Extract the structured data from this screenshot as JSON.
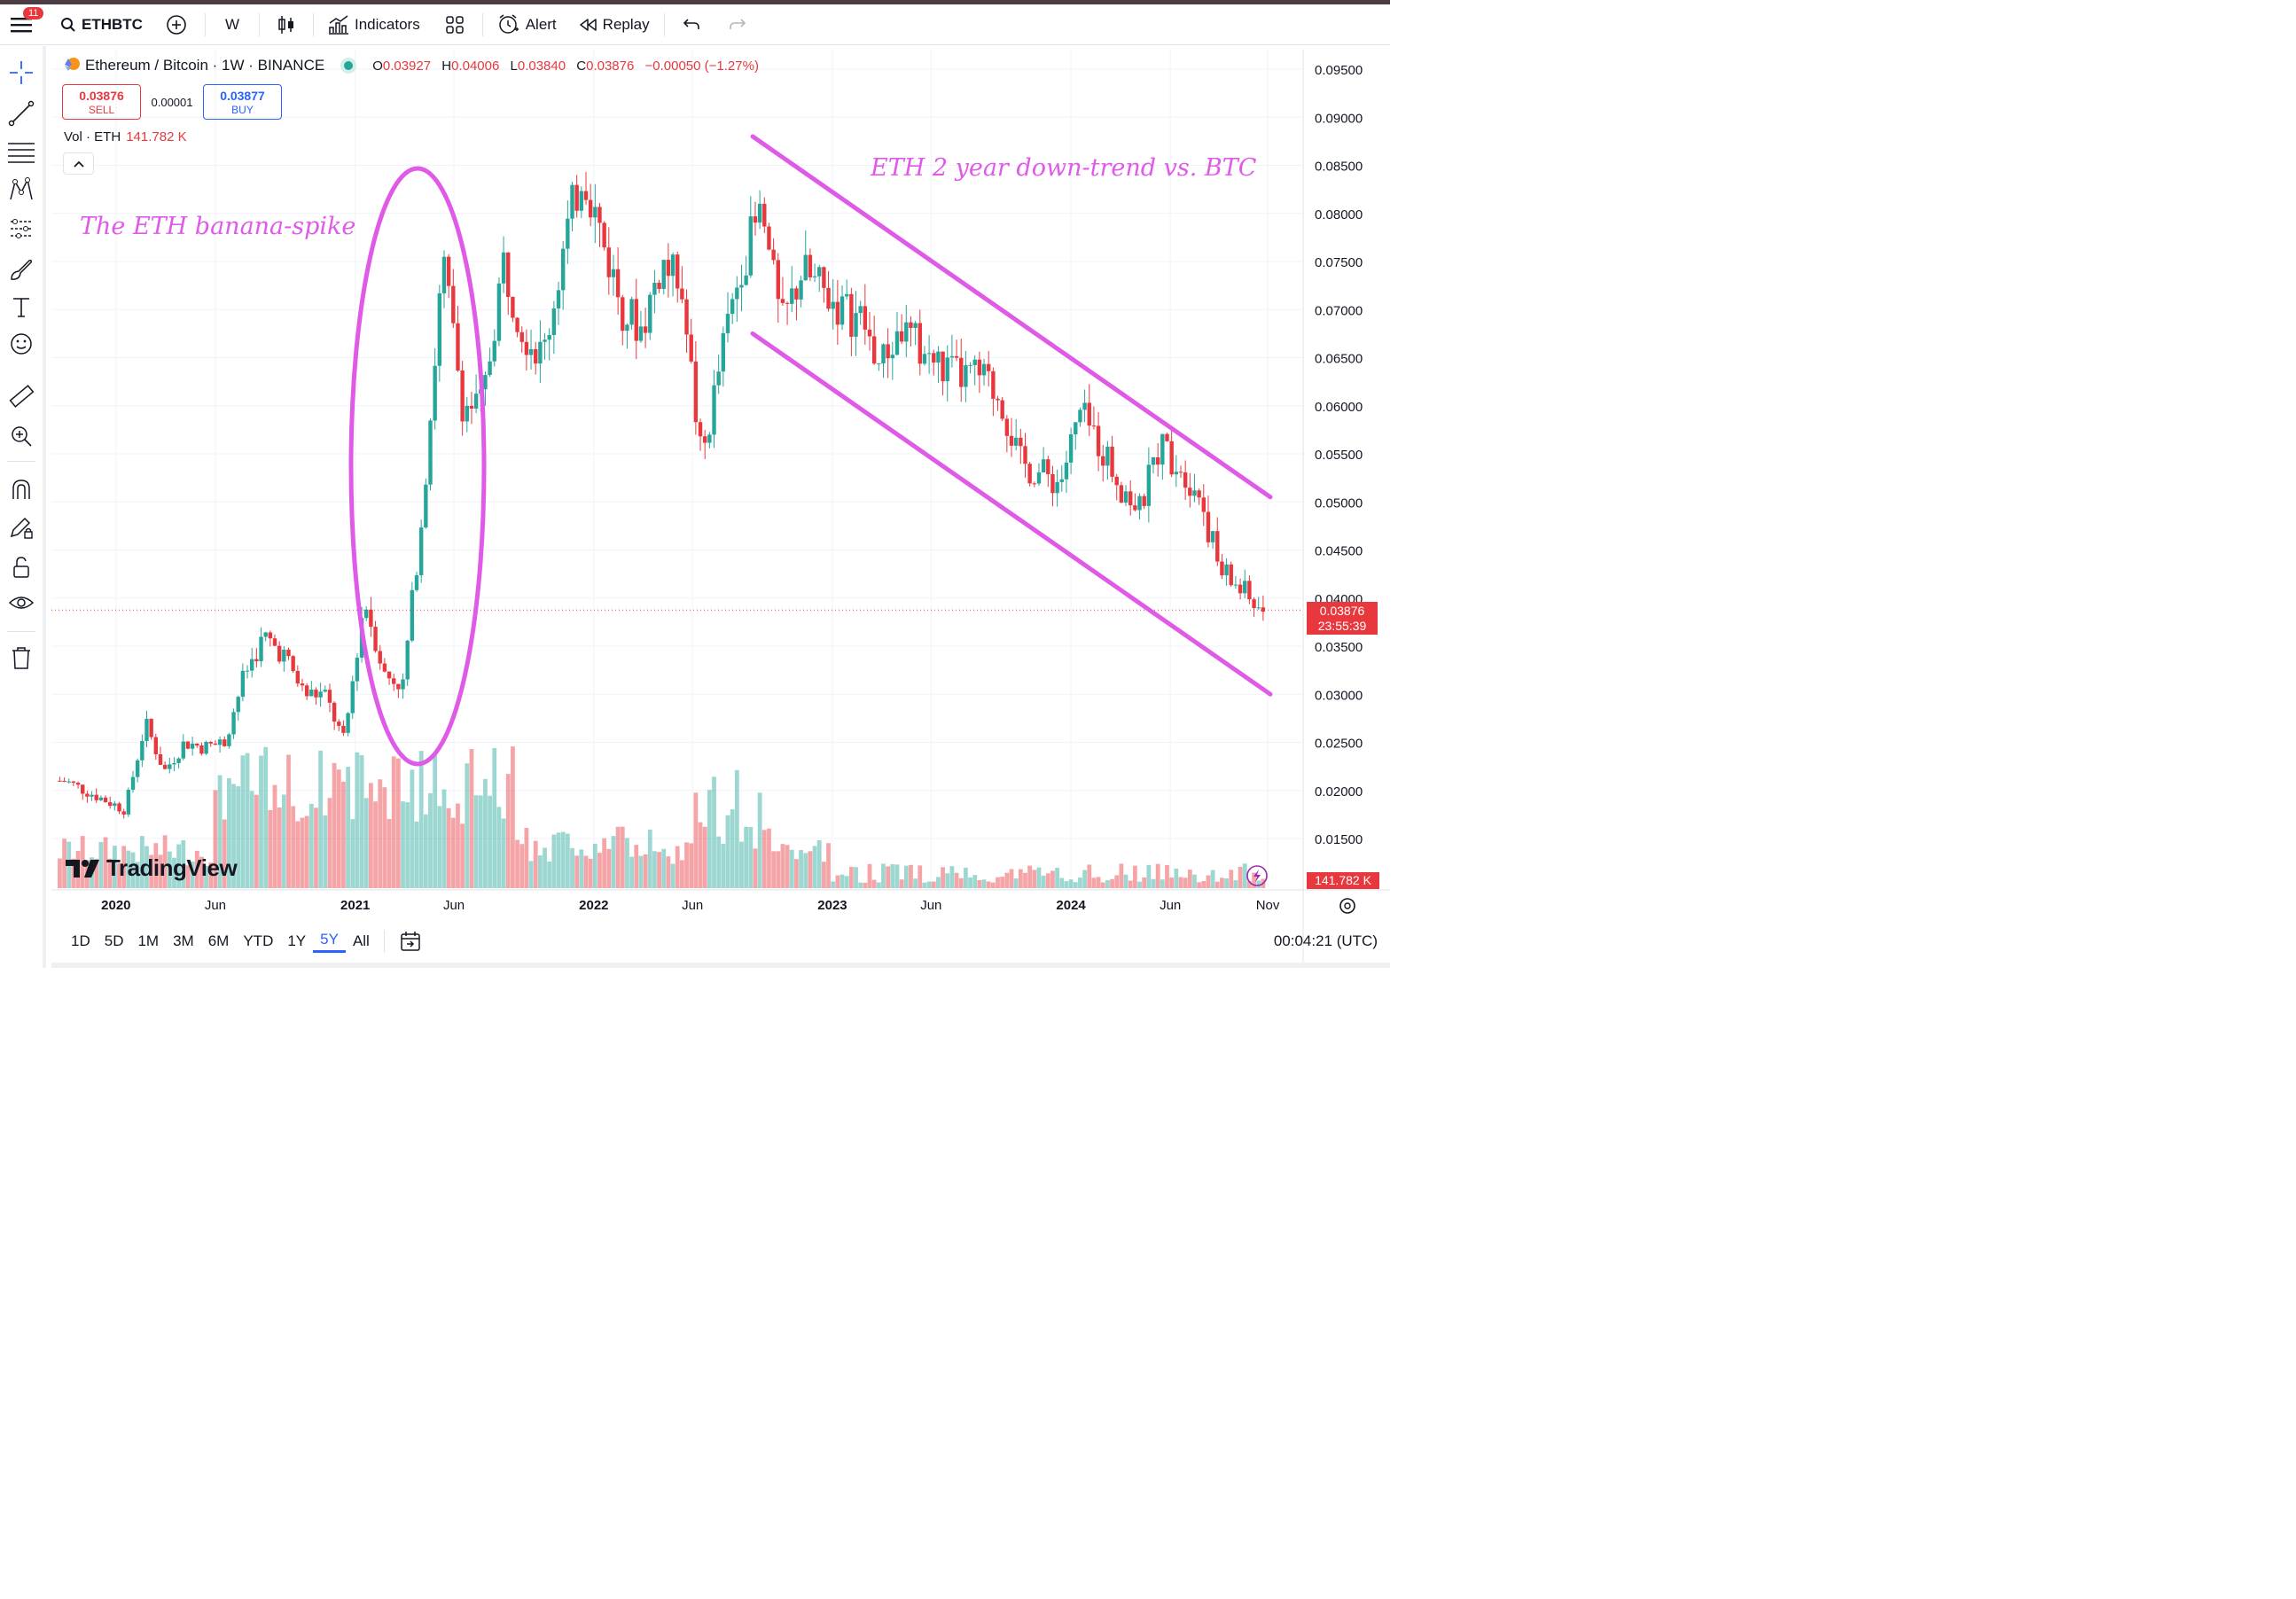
{
  "toolbar": {
    "notifications": "11",
    "symbol": "ETHBTC",
    "interval": "W",
    "indicators_label": "Indicators",
    "alert_label": "Alert",
    "replay_label": "Replay"
  },
  "legend": {
    "pair": "Ethereum / Bitcoin · 1W · BINANCE",
    "o_label": "O",
    "o": "0.03927",
    "h_label": "H",
    "h": "0.04006",
    "l_label": "L",
    "l": "0.03840",
    "c_label": "C",
    "c": "0.03876",
    "change": "−0.00050 (−1.27%)"
  },
  "trade": {
    "sell_price": "0.03876",
    "sell_label": "SELL",
    "spread": "0.00001",
    "buy_price": "0.03877",
    "buy_label": "BUY"
  },
  "volume": {
    "label": "Vol · ETH",
    "value": "141.782 K"
  },
  "annotations": {
    "left": "The ETH banana-spike",
    "right": "ETH 2 year down-trend vs. BTC"
  },
  "logo_text": "TradingView",
  "price_tag": {
    "price": "0.03876",
    "countdown": "23:55:39"
  },
  "volume_tag": "141.782 K",
  "ranges": [
    "1D",
    "5D",
    "1M",
    "3M",
    "6M",
    "YTD",
    "1Y",
    "5Y",
    "All"
  ],
  "active_range": "5Y",
  "clock": "00:04:21 (UTC)",
  "colors": {
    "up": "#26a69a",
    "down": "#e8383d",
    "annotation": "#e05ae8",
    "accent": "#2962ff"
  },
  "chart_data": {
    "type": "candlestick",
    "title": "Ethereum / Bitcoin · 1W · BINANCE",
    "y_ticks": [
      "0.09500",
      "0.09000",
      "0.08500",
      "0.08000",
      "0.07500",
      "0.07000",
      "0.06500",
      "0.06000",
      "0.05500",
      "0.05000",
      "0.04500",
      "0.04000",
      "0.03500",
      "0.03000",
      "0.02500",
      "0.02000",
      "0.01500"
    ],
    "x_ticks": [
      "2020",
      "Jun",
      "2021",
      "Jun",
      "2022",
      "Jun",
      "2023",
      "Jun",
      "2024",
      "Jun",
      "Nov"
    ],
    "ylim": [
      0.0125,
      0.0965
    ],
    "last_close": 0.03876,
    "series": [
      {
        "name": "ETHBTC",
        "close_path": [
          [
            "2019-10",
            0.021
          ],
          [
            "2019-12",
            0.019
          ],
          [
            "2020-01",
            0.018
          ],
          [
            "2020-02",
            0.027
          ],
          [
            "2020-03",
            0.022
          ],
          [
            "2020-04",
            0.025
          ],
          [
            "2020-05",
            0.0245
          ],
          [
            "2020-06",
            0.025
          ],
          [
            "2020-07",
            0.032
          ],
          [
            "2020-08",
            0.036
          ],
          [
            "2020-09",
            0.034
          ],
          [
            "2020-10",
            0.03
          ],
          [
            "2020-11",
            0.03
          ],
          [
            "2020-12",
            0.025
          ],
          [
            "2021-01",
            0.04
          ],
          [
            "2021-02",
            0.032
          ],
          [
            "2021-03",
            0.031
          ],
          [
            "2021-04",
            0.05
          ],
          [
            "2021-05",
            0.075
          ],
          [
            "2021-06",
            0.06
          ],
          [
            "2021-07",
            0.06
          ],
          [
            "2021-08",
            0.075
          ],
          [
            "2021-09",
            0.068
          ],
          [
            "2021-10",
            0.065
          ],
          [
            "2021-11",
            0.076
          ],
          [
            "2021-12",
            0.085
          ],
          [
            "2022-01",
            0.077
          ],
          [
            "2022-02",
            0.07
          ],
          [
            "2022-03",
            0.068
          ],
          [
            "2022-04",
            0.075
          ],
          [
            "2022-05",
            0.072
          ],
          [
            "2022-06",
            0.054
          ],
          [
            "2022-07",
            0.065
          ],
          [
            "2022-08",
            0.075
          ],
          [
            "2022-09",
            0.08
          ],
          [
            "2022-10",
            0.068
          ],
          [
            "2022-11",
            0.074
          ],
          [
            "2022-12",
            0.072
          ],
          [
            "2023-01",
            0.07
          ],
          [
            "2023-02",
            0.069
          ],
          [
            "2023-03",
            0.064
          ],
          [
            "2023-04",
            0.068
          ],
          [
            "2023-05",
            0.066
          ],
          [
            "2023-06",
            0.064
          ],
          [
            "2023-07",
            0.063
          ],
          [
            "2023-08",
            0.063
          ],
          [
            "2023-09",
            0.061
          ],
          [
            "2023-10",
            0.054
          ],
          [
            "2023-11",
            0.053
          ],
          [
            "2023-12",
            0.052
          ],
          [
            "2024-01",
            0.059
          ],
          [
            "2024-02",
            0.056
          ],
          [
            "2024-03",
            0.052
          ],
          [
            "2024-04",
            0.049
          ],
          [
            "2024-05",
            0.056
          ],
          [
            "2024-06",
            0.054
          ],
          [
            "2024-07",
            0.051
          ],
          [
            "2024-08",
            0.043
          ],
          [
            "2024-09",
            0.041
          ],
          [
            "2024-10",
            0.0388
          ]
        ]
      }
    ],
    "trend_channel": {
      "upper": [
        [
          "2022-09",
          0.088
        ],
        [
          "2024-11",
          0.0505
        ]
      ],
      "lower": [
        [
          "2022-09",
          0.0675
        ],
        [
          "2024-11",
          0.03
        ]
      ]
    }
  }
}
